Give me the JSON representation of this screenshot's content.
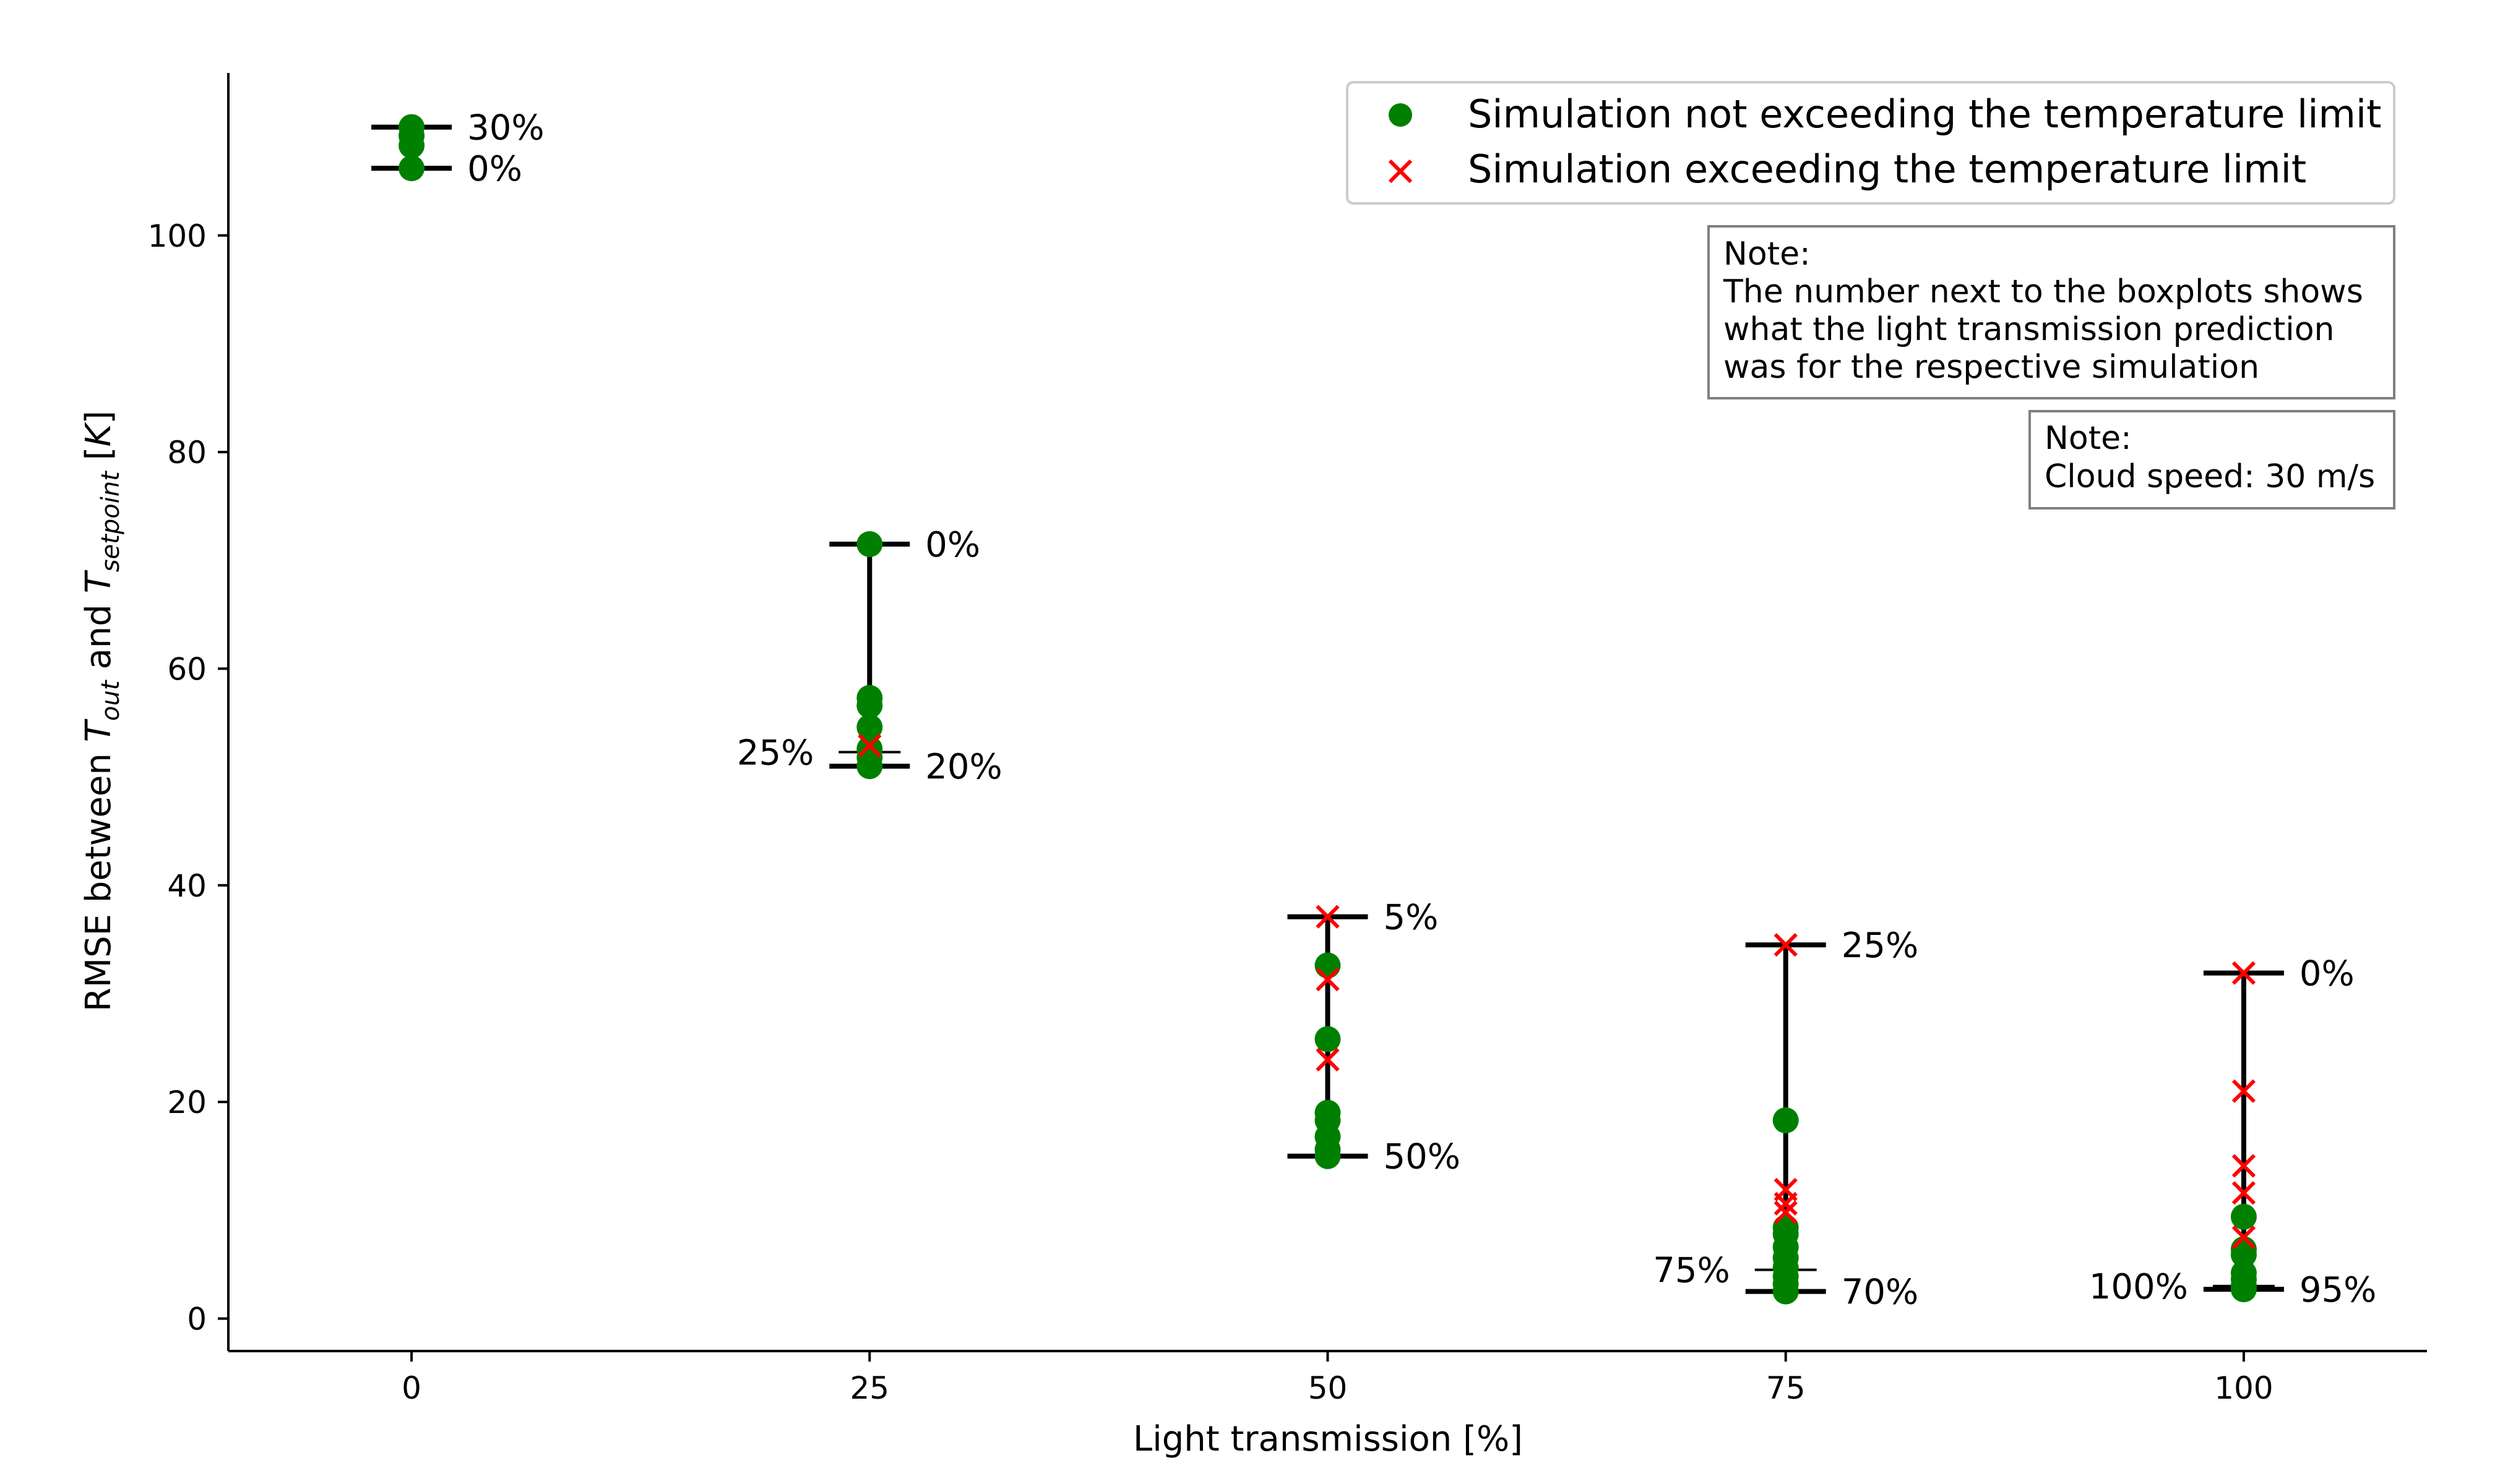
{
  "chart_data": {
    "type": "scatter",
    "title": "",
    "xlabel": "Light transmission [%]",
    "ylabel_parts": [
      {
        "text": "RMSE between ",
        "italic": false,
        "sub": false
      },
      {
        "text": "T",
        "italic": true,
        "sub": false
      },
      {
        "text": "out",
        "italic": true,
        "sub": true
      },
      {
        "text": " and ",
        "italic": false,
        "sub": false
      },
      {
        "text": "T",
        "italic": true,
        "sub": false
      },
      {
        "text": "setpoint",
        "italic": true,
        "sub": true
      },
      {
        "text": " [",
        "italic": false,
        "sub": false
      },
      {
        "text": "K",
        "italic": true,
        "sub": false
      },
      {
        "text": "]",
        "italic": false,
        "sub": false
      }
    ],
    "xlim": [
      -10,
      110
    ],
    "ylim": [
      -3,
      115
    ],
    "xticks": [
      0,
      25,
      50,
      75,
      100
    ],
    "xtick_labels": [
      "0",
      "25",
      "50",
      "75",
      "100"
    ],
    "yticks": [
      0,
      20,
      40,
      60,
      80,
      100
    ],
    "ytick_labels": [
      "0",
      "20",
      "40",
      "60",
      "80",
      "100"
    ],
    "legend": {
      "placement": "top-right",
      "entries": [
        {
          "label": "Simulation not exceeding the temperature limit",
          "marker": "circle",
          "color": "#008000"
        },
        {
          "label": "Simulation exceeding the temperature limit",
          "marker": "x",
          "color": "#ff0000"
        }
      ]
    },
    "annotations": [
      {
        "lines": [
          "Note:",
          "The number next to the boxplots shows",
          "what the light transmission prediction",
          "was for the respective simulation"
        ]
      },
      {
        "lines": [
          "Note:",
          "Cloud speed: 30 m/s"
        ]
      }
    ],
    "groups": [
      {
        "x": 0,
        "whisker_low": 106.2,
        "whisker_high": 110.0,
        "labels": [
          {
            "text": "30%",
            "y": 110.0,
            "side": "right"
          },
          {
            "text": "0%",
            "y": 106.2,
            "side": "right"
          }
        ],
        "not_exceeding": [
          110.0,
          109.2,
          108.3,
          106.2
        ],
        "exceeding": []
      },
      {
        "x": 25,
        "whisker_low": 51.0,
        "whisker_high": 71.5,
        "labels": [
          {
            "text": "0%",
            "y": 71.5,
            "side": "right"
          },
          {
            "text": "25%",
            "y": 52.3,
            "side": "left"
          },
          {
            "text": "20%",
            "y": 51.0,
            "side": "right"
          }
        ],
        "extra_lines": [
          52.3
        ],
        "not_exceeding": [
          71.5,
          57.3,
          56.6,
          54.6,
          52.6,
          51.8,
          51.0
        ],
        "exceeding": [
          52.9
        ]
      },
      {
        "x": 50,
        "whisker_low": 15.0,
        "whisker_high": 37.1,
        "labels": [
          {
            "text": "5%",
            "y": 37.1,
            "side": "right"
          },
          {
            "text": "50%",
            "y": 15.0,
            "side": "right"
          }
        ],
        "not_exceeding": [
          32.6,
          25.8,
          19.0,
          18.3,
          16.8,
          15.6,
          15.0
        ],
        "exceeding": [
          37.1,
          31.3,
          23.9
        ]
      },
      {
        "x": 75,
        "whisker_low": 2.5,
        "whisker_high": 34.5,
        "labels": [
          {
            "text": "25%",
            "y": 34.5,
            "side": "right"
          },
          {
            "text": "75%",
            "y": 4.5,
            "side": "left"
          },
          {
            "text": "70%",
            "y": 2.5,
            "side": "right"
          }
        ],
        "extra_lines": [
          4.5
        ],
        "not_exceeding": [
          18.3,
          8.4,
          7.8,
          6.6,
          5.6,
          4.7,
          3.9,
          3.2,
          2.5
        ],
        "exceeding": [
          34.5,
          11.9,
          10.6,
          9.8
        ]
      },
      {
        "x": 100,
        "whisker_low": 2.7,
        "whisker_high": 31.9,
        "labels": [
          {
            "text": "0%",
            "y": 31.9,
            "side": "right"
          },
          {
            "text": "100%",
            "y": 3.0,
            "side": "left"
          },
          {
            "text": "95%",
            "y": 2.7,
            "side": "right"
          }
        ],
        "extra_lines": [
          3.0
        ],
        "not_exceeding": [
          9.4,
          6.4,
          5.9,
          4.2,
          3.6,
          3.0,
          2.7
        ],
        "exceeding": [
          31.9,
          21.0,
          14.1,
          11.6,
          7.5
        ]
      }
    ]
  }
}
